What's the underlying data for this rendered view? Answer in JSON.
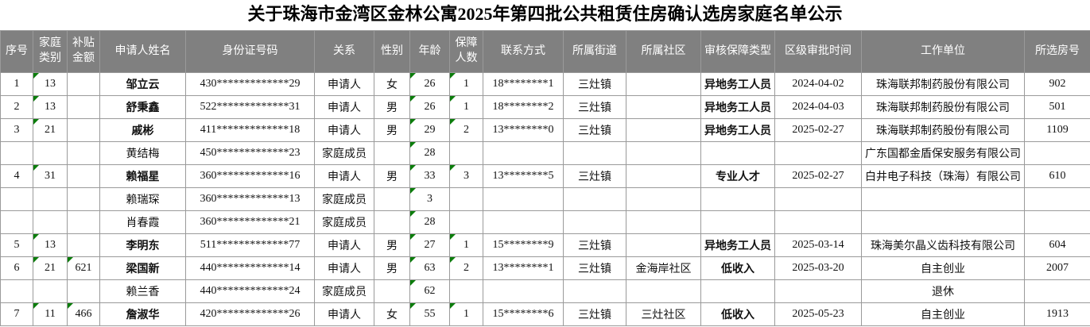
{
  "title": "关于珠海市金湾区金林公寓2025年第四批公共租赁住房确认选房家庭名单公示",
  "colors": {
    "header_bg": "#808080",
    "header_text": "#ffffff",
    "grid_line": "#9a9a9a",
    "flag_green": "#0b7d0b"
  },
  "table": {
    "columns": [
      {
        "key": "no",
        "label": "序号"
      },
      {
        "key": "family_type",
        "label": "家庭类别"
      },
      {
        "key": "subsidy",
        "label": "补贴金额"
      },
      {
        "key": "name",
        "label": "申请人姓名"
      },
      {
        "key": "id_number",
        "label": "身份证号码"
      },
      {
        "key": "relation",
        "label": "关系"
      },
      {
        "key": "gender",
        "label": "性别"
      },
      {
        "key": "age",
        "label": "年龄"
      },
      {
        "key": "members",
        "label": "保障人数"
      },
      {
        "key": "phone",
        "label": "联系方式"
      },
      {
        "key": "street",
        "label": "所属街道"
      },
      {
        "key": "community",
        "label": "所属社区"
      },
      {
        "key": "type",
        "label": "审核保障类型"
      },
      {
        "key": "approval_date",
        "label": "区级审批时间"
      },
      {
        "key": "employer",
        "label": "工作单位"
      },
      {
        "key": "room",
        "label": "所选房号"
      }
    ],
    "flag_columns": [
      "family_type",
      "subsidy",
      "age",
      "members"
    ],
    "bold_columns": [
      "type"
    ],
    "rows": [
      {
        "no": "1",
        "family_type": "13",
        "subsidy": "",
        "name": "邹立云",
        "id_number": "430*************29",
        "relation": "申请人",
        "gender": "女",
        "age": "26",
        "members": "1",
        "phone": "18********1",
        "street": "三灶镇",
        "community": "",
        "type": "异地务工人员",
        "approval_date": "2024-04-02",
        "employer": "珠海联邦制药股份有限公司",
        "room": "902",
        "is_applicant": true
      },
      {
        "no": "2",
        "family_type": "13",
        "subsidy": "",
        "name": "舒秉鑫",
        "id_number": "522*************31",
        "relation": "申请人",
        "gender": "男",
        "age": "26",
        "members": "1",
        "phone": "18********2",
        "street": "三灶镇",
        "community": "",
        "type": "异地务工人员",
        "approval_date": "2024-04-03",
        "employer": "珠海联邦制药股份有限公司",
        "room": "501",
        "is_applicant": true
      },
      {
        "no": "3",
        "family_type": "21",
        "subsidy": "",
        "name": "戚彬",
        "id_number": "411*************18",
        "relation": "申请人",
        "gender": "男",
        "age": "29",
        "members": "2",
        "phone": "13********0",
        "street": "三灶镇",
        "community": "",
        "type": "异地务工人员",
        "approval_date": "2025-02-27",
        "employer": "珠海联邦制药股份有限公司",
        "room": "1109",
        "is_applicant": true
      },
      {
        "no": "",
        "family_type": "",
        "subsidy": "",
        "name": "黄结梅",
        "id_number": "450*************23",
        "relation": "家庭成员",
        "gender": "",
        "age": "28",
        "members": "",
        "phone": "",
        "street": "",
        "community": "",
        "type": "",
        "approval_date": "",
        "employer": "广东国都金盾保安服务有限公司",
        "room": "",
        "is_applicant": false
      },
      {
        "no": "4",
        "family_type": "31",
        "subsidy": "",
        "name": "赖福星",
        "id_number": "360*************16",
        "relation": "申请人",
        "gender": "男",
        "age": "33",
        "members": "3",
        "phone": "13********5",
        "street": "三灶镇",
        "community": "",
        "type": "专业人才",
        "approval_date": "2025-02-27",
        "employer": "白井电子科技（珠海）有限公司",
        "room": "610",
        "is_applicant": true
      },
      {
        "no": "",
        "family_type": "",
        "subsidy": "",
        "name": "赖瑞琛",
        "id_number": "360*************13",
        "relation": "家庭成员",
        "gender": "",
        "age": "3",
        "members": "",
        "phone": "",
        "street": "",
        "community": "",
        "type": "",
        "approval_date": "",
        "employer": "",
        "room": "",
        "is_applicant": false
      },
      {
        "no": "",
        "family_type": "",
        "subsidy": "",
        "name": "肖春霞",
        "id_number": "360*************21",
        "relation": "家庭成员",
        "gender": "",
        "age": "28",
        "members": "",
        "phone": "",
        "street": "",
        "community": "",
        "type": "",
        "approval_date": "",
        "employer": "",
        "room": "",
        "is_applicant": false
      },
      {
        "no": "5",
        "family_type": "13",
        "subsidy": "",
        "name": "李明东",
        "id_number": "511*************77",
        "relation": "申请人",
        "gender": "男",
        "age": "27",
        "members": "1",
        "phone": "15********9",
        "street": "三灶镇",
        "community": "",
        "type": "异地务工人员",
        "approval_date": "2025-03-14",
        "employer": "珠海美尔晶义齿科技有限公司",
        "room": "604",
        "is_applicant": true
      },
      {
        "no": "6",
        "family_type": "21",
        "subsidy": "621",
        "name": "梁国新",
        "id_number": "440*************14",
        "relation": "申请人",
        "gender": "男",
        "age": "63",
        "members": "2",
        "phone": "13********1",
        "street": "三灶镇",
        "community": "金海岸社区",
        "type": "低收入",
        "approval_date": "2025-03-20",
        "employer": "自主创业",
        "room": "2007",
        "is_applicant": true
      },
      {
        "no": "",
        "family_type": "",
        "subsidy": "",
        "name": "赖兰香",
        "id_number": "440*************24",
        "relation": "家庭成员",
        "gender": "",
        "age": "62",
        "members": "",
        "phone": "",
        "street": "",
        "community": "",
        "type": "",
        "approval_date": "",
        "employer": "退休",
        "room": "",
        "is_applicant": false
      },
      {
        "no": "7",
        "family_type": "11",
        "subsidy": "466",
        "name": "詹淑华",
        "id_number": "420*************26",
        "relation": "申请人",
        "gender": "女",
        "age": "55",
        "members": "1",
        "phone": "15********6",
        "street": "三灶镇",
        "community": "三灶社区",
        "type": "低收入",
        "approval_date": "2025-05-23",
        "employer": "自主创业",
        "room": "1913",
        "is_applicant": true
      }
    ]
  }
}
